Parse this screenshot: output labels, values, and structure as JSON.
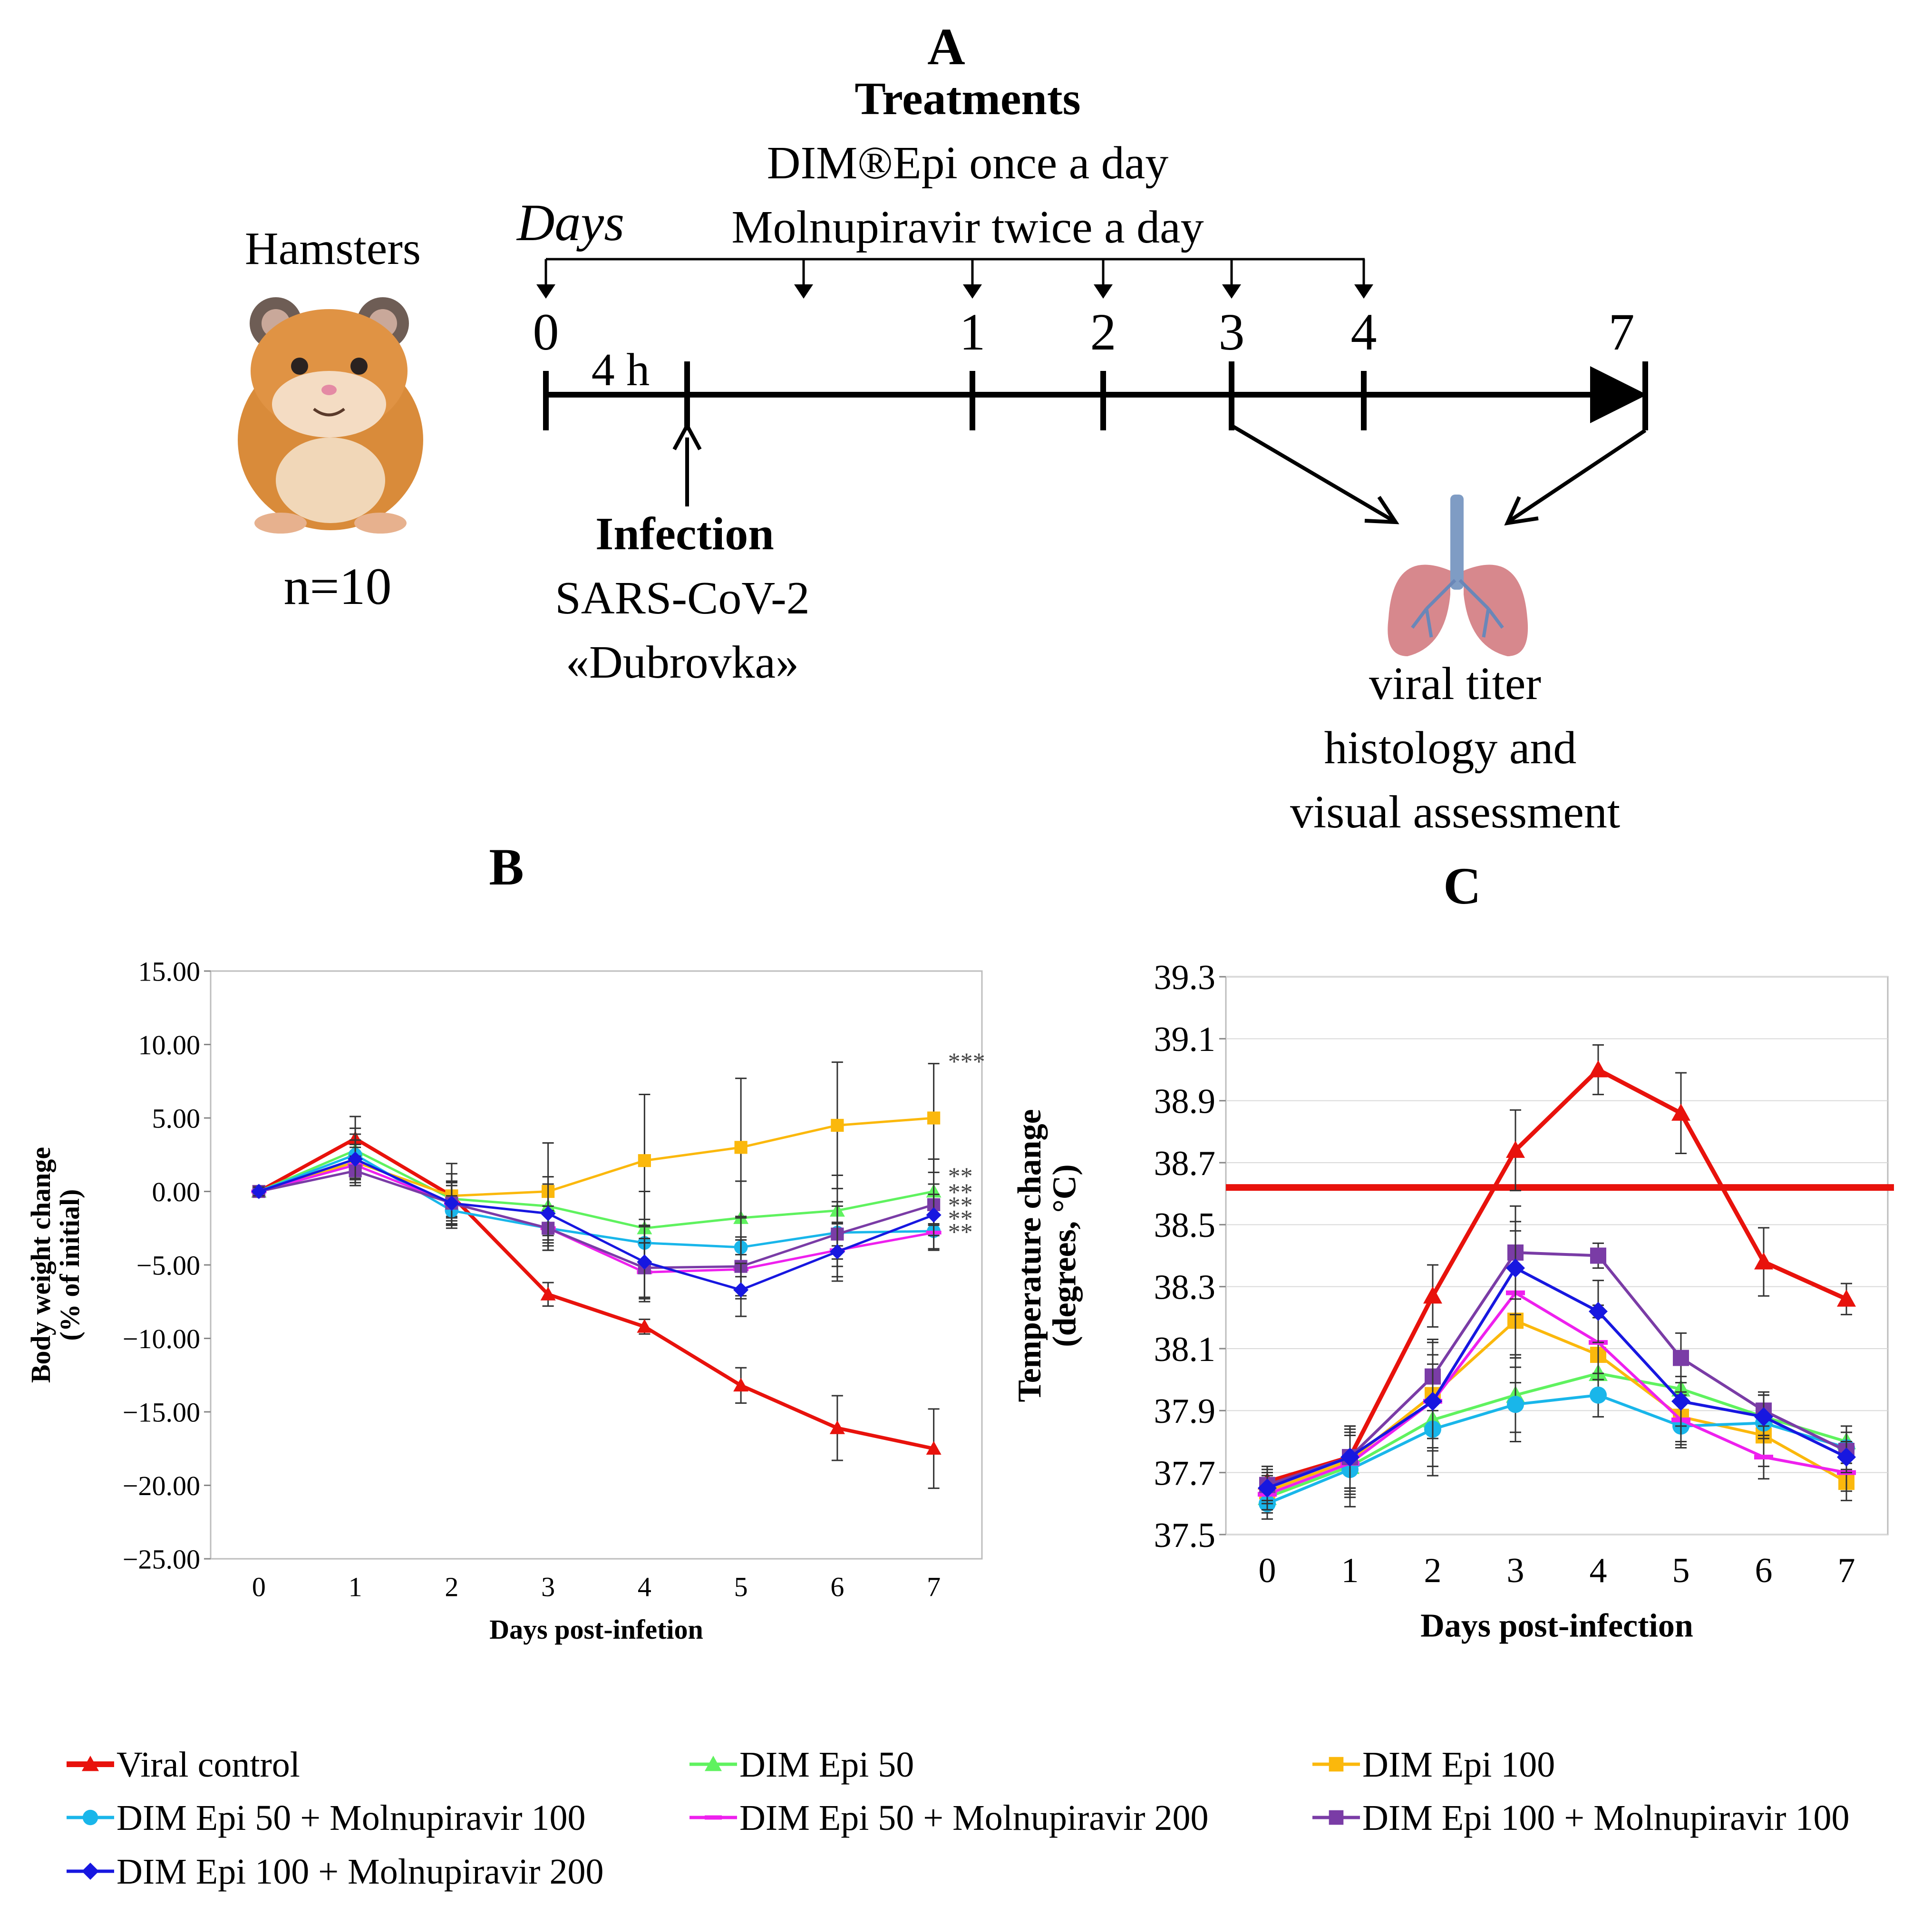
{
  "panel_labels": {
    "a": "A",
    "b": "B",
    "c": "C"
  },
  "schematic": {
    "hamsters_label": "Hamsters",
    "n_label": "n=10",
    "treatments_title": "Treatments",
    "treatment_line1": "DIM®Epi  once a day",
    "treatment_line2": "Molnupiravir twice a day",
    "days_label": "Days",
    "day_ticks": [
      "0",
      "1",
      "2",
      "3",
      "4",
      "7"
    ],
    "interval_label": "4 h",
    "infection_title": "Infection",
    "infection_virus": "SARS-CoV-2",
    "infection_strain": "«Dubrovka»",
    "outcome_line1": "viral titer",
    "outcome_line2": "histology and",
    "outcome_line3": "visual assessment"
  },
  "colors": {
    "viral": "#e8120c",
    "dim50": "#5ff25f",
    "dim100": "#fbb80c",
    "dim50m100": "#19b6ea",
    "dim50m200": "#ee20ee",
    "dim100m100": "#7a3ca6",
    "dim100m200": "#1717e0"
  },
  "legend": [
    {
      "key": "viral",
      "label": "Viral control",
      "marker": "triangle"
    },
    {
      "key": "dim50",
      "label": "DIM Epi  50",
      "marker": "triangle"
    },
    {
      "key": "dim100",
      "label": "DIM Epi  100",
      "marker": "square"
    },
    {
      "key": "dim50m100",
      "label": "DIM Epi  50 + Molnupiravir 100",
      "marker": "circle"
    },
    {
      "key": "dim50m200",
      "label": "DIM Epi  50 + Molnupiravir 200",
      "marker": "dash"
    },
    {
      "key": "dim100m100",
      "label": "DIM Epi  100 + Molnupiravir 100",
      "marker": "square"
    },
    {
      "key": "dim100m200",
      "label": "DIM Epi  100 + Molnupiravir 200",
      "marker": "diamond"
    }
  ],
  "chart_data": [
    {
      "id": "B",
      "type": "line",
      "xlabel": "Days post-infetion",
      "ylabel_line1": "Body weight change",
      "ylabel_line2": "(% of initial)",
      "x": [
        0,
        1,
        2,
        3,
        4,
        5,
        6,
        7
      ],
      "y_ticks": [
        "15.00",
        "10.00",
        "5.00",
        "0.00",
        "−5.00",
        "−10.00",
        "−15.00",
        "−20.00",
        "−25.00"
      ],
      "ylim": [
        -25,
        15
      ],
      "significance": [
        "***",
        "**",
        "**",
        "**",
        "**",
        "**"
      ],
      "series": [
        {
          "key": "viral",
          "name": "Viral control",
          "values": [
            0,
            3.6,
            -0.3,
            -7.0,
            -9.2,
            -13.2,
            -16.1,
            -17.5
          ],
          "err": [
            0.3,
            1.5,
            2.2,
            0.8,
            0.5,
            1.2,
            2.2,
            2.7
          ]
        },
        {
          "key": "dim50",
          "name": "DIM Epi  50",
          "values": [
            0,
            2.8,
            -0.5,
            -1.0,
            -2.5,
            -1.8,
            -1.3,
            0.0
          ],
          "err": [
            0.3,
            1.5,
            1.2,
            2.0,
            2.5,
            2.5,
            2.4,
            2.2
          ]
        },
        {
          "key": "dim100",
          "name": "DIM Epi  100",
          "values": [
            0,
            2.0,
            -0.3,
            0.0,
            2.1,
            3.0,
            4.5,
            5.0
          ],
          "err": [
            0.3,
            1.2,
            1.5,
            3.3,
            4.5,
            4.7,
            4.3,
            3.7
          ]
        },
        {
          "key": "dim50m100",
          "name": "DIM Epi  50 + Molnupiravir 100",
          "values": [
            0,
            2.5,
            -1.3,
            -2.5,
            -3.5,
            -3.8,
            -2.8,
            -2.7
          ],
          "err": [
            0.3,
            1.4,
            1.0,
            1.2,
            1.6,
            2.0,
            1.8,
            1.2
          ]
        },
        {
          "key": "dim50m200",
          "name": "DIM Epi  50 + Molnupiravir 200",
          "values": [
            0,
            1.8,
            -0.8,
            -2.5,
            -5.5,
            -5.3,
            -4.0,
            -2.8
          ],
          "err": [
            0.3,
            1.2,
            1.2,
            1.5,
            2.0,
            2.0,
            1.8,
            1.2
          ]
        },
        {
          "key": "dim100m100",
          "name": "DIM Epi  100 + Molnupiravir 100",
          "values": [
            0,
            1.4,
            -0.8,
            -2.5,
            -5.2,
            -5.1,
            -2.9,
            -0.9
          ],
          "err": [
            0.3,
            1.0,
            1.4,
            1.5,
            2.0,
            2.0,
            2.2,
            1.4
          ]
        },
        {
          "key": "dim100m200",
          "name": "DIM Epi  100 + Molnupiravir 200",
          "values": [
            0,
            2.2,
            -0.8,
            -1.5,
            -4.8,
            -6.7,
            -4.1,
            -1.6
          ],
          "err": [
            0.3,
            1.3,
            1.5,
            2.0,
            2.5,
            1.8,
            2.0,
            1.4
          ]
        }
      ]
    },
    {
      "id": "C",
      "type": "line",
      "xlabel": "Days post-infection",
      "ylabel_line1": "Temperature change",
      "ylabel_line2": "(degrees, °C)",
      "x": [
        0,
        1,
        2,
        3,
        4,
        5,
        6,
        7
      ],
      "y_ticks": [
        "39.3",
        "39.1",
        "38.9",
        "38.7",
        "38.5",
        "38.3",
        "38.1",
        "37.9",
        "37.7",
        "37.5"
      ],
      "ylim": [
        37.5,
        39.3
      ],
      "reference_line": 38.62,
      "series": [
        {
          "key": "viral",
          "name": "Viral control",
          "values": [
            37.67,
            37.75,
            38.27,
            38.74,
            39.0,
            38.86,
            38.38,
            38.26
          ],
          "err": [
            0.05,
            0.1,
            0.1,
            0.13,
            0.08,
            0.13,
            0.11,
            0.05
          ]
        },
        {
          "key": "dim50",
          "name": "DIM Epi  50",
          "values": [
            37.62,
            37.72,
            37.87,
            37.95,
            38.02,
            37.97,
            37.88,
            37.8
          ],
          "err": [
            0.05,
            0.1,
            0.15,
            0.12,
            0.08,
            0.1,
            0.08,
            0.05
          ]
        },
        {
          "key": "dim100",
          "name": "DIM Epi  100",
          "values": [
            37.64,
            37.74,
            37.95,
            38.19,
            38.08,
            37.88,
            37.82,
            37.67
          ],
          "err": [
            0.05,
            0.1,
            0.18,
            0.2,
            0.12,
            0.08,
            0.1,
            0.06
          ]
        },
        {
          "key": "dim50m100",
          "name": "DIM Epi  50 + Molnupiravir 100",
          "values": [
            37.6,
            37.71,
            37.84,
            37.92,
            37.95,
            37.85,
            37.86,
            37.78
          ],
          "err": [
            0.05,
            0.12,
            0.15,
            0.12,
            0.07,
            0.07,
            0.05,
            0.05
          ]
        },
        {
          "key": "dim50m200",
          "name": "DIM Epi  50 + Molnupiravir 200",
          "values": [
            37.63,
            37.73,
            37.93,
            38.28,
            38.12,
            37.87,
            37.75,
            37.7
          ],
          "err": [
            0.05,
            0.1,
            0.15,
            0.2,
            0.12,
            0.08,
            0.07,
            0.06
          ]
        },
        {
          "key": "dim100m100",
          "name": "DIM Epi  100 + Molnupiravir 100",
          "values": [
            37.66,
            37.75,
            38.01,
            38.41,
            38.4,
            38.07,
            37.9,
            37.77
          ],
          "err": [
            0.05,
            0.1,
            0.11,
            0.15,
            0.04,
            0.08,
            0.05,
            0.06
          ]
        },
        {
          "key": "dim100m200",
          "name": "DIM Epi  100 + Molnupiravir 200",
          "values": [
            37.65,
            37.75,
            37.93,
            38.36,
            38.22,
            37.93,
            37.88,
            37.75
          ],
          "err": [
            0.05,
            0.1,
            0.12,
            0.15,
            0.1,
            0.08,
            0.07,
            0.05
          ]
        }
      ]
    }
  ]
}
